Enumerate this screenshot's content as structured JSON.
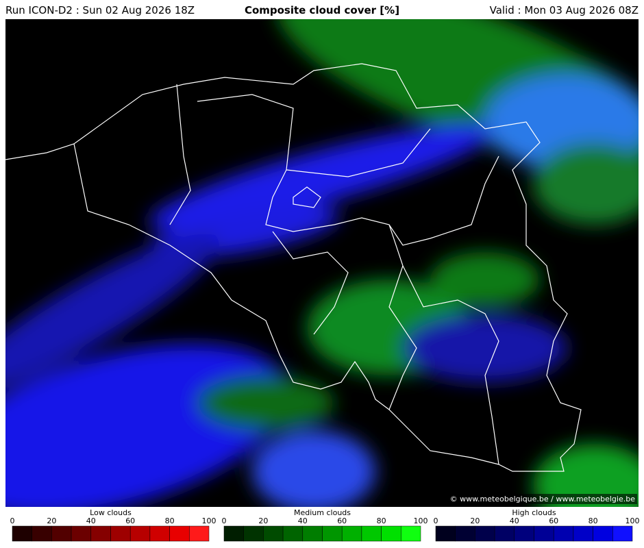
{
  "header": {
    "run": "Run ICON-D2 : Sun 02 Aug 2026 18Z",
    "title": "Composite cloud cover [%]",
    "valid": "Valid : Mon 03 Aug 2026 08Z"
  },
  "copyright": "© www.meteobelgique.be / www.meteobelgie.be",
  "colorbars": [
    {
      "label": "Low clouds",
      "ticks": [
        0,
        20,
        40,
        60,
        80,
        100
      ],
      "colors": [
        "#1e0000",
        "#380000",
        "#520000",
        "#6b0000",
        "#850000",
        "#9e0000",
        "#b70000",
        "#d00000",
        "#e80000",
        "#ff1a1a"
      ]
    },
    {
      "label": "Medium clouds",
      "ticks": [
        0,
        20,
        40,
        60,
        80,
        100
      ],
      "colors": [
        "#001e00",
        "#003300",
        "#004b00",
        "#006400",
        "#007d00",
        "#009600",
        "#00b000",
        "#00c800",
        "#00e000",
        "#10ff10"
      ]
    },
    {
      "label": "High clouds",
      "ticks": [
        0,
        20,
        40,
        60,
        80,
        100
      ],
      "colors": [
        "#00001e",
        "#000033",
        "#00004b",
        "#000064",
        "#00007d",
        "#000096",
        "#0000b0",
        "#0000c8",
        "#0000e0",
        "#1010ff"
      ]
    }
  ]
}
